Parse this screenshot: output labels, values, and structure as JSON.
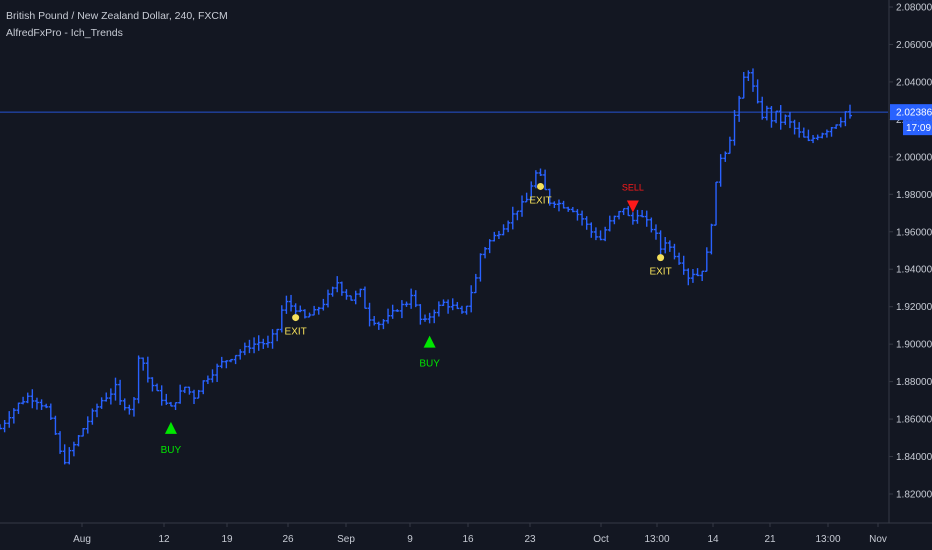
{
  "header": {
    "title": "British Pound / New Zealand Dollar, 240, FXCM",
    "indicator": "AlfredFxPro - Ich_Trends"
  },
  "colors": {
    "background": "#131722",
    "bars": "#2962ff",
    "axis_text": "#c7cbd4",
    "axis_line": "#363a45",
    "buy": "#00e600",
    "sell": "#ff1a1a",
    "exit": "#f5e05a",
    "price_line": "#2962ff"
  },
  "chart_data": {
    "type": "ohlc",
    "symbol": "GBPNZD",
    "timeframe": "240",
    "ylim": [
      1.81,
      2.088
    ],
    "y_ticks": [
      "2.08000",
      "2.06000",
      "2.04000",
      "2.02000",
      "2.00000",
      "1.98000",
      "1.96000",
      "1.94000",
      "1.92000",
      "1.90000",
      "1.88000",
      "1.86000",
      "1.84000",
      "1.82000"
    ],
    "x_ticks": [
      "Aug",
      "12",
      "19",
      "26",
      "Sep",
      "9",
      "16",
      "23",
      "Oct",
      "13:00",
      "14",
      "21",
      "13:00",
      "Nov"
    ],
    "last_price": "2.02386",
    "countdown": "17:09",
    "close_path": [
      [
        0,
        1.855
      ],
      [
        2,
        1.862
      ],
      [
        4,
        1.868
      ],
      [
        6,
        1.872
      ],
      [
        8,
        1.87
      ],
      [
        10,
        1.866
      ],
      [
        12,
        1.852
      ],
      [
        13,
        1.842
      ],
      [
        14,
        1.838
      ],
      [
        16,
        1.846
      ],
      [
        18,
        1.855
      ],
      [
        20,
        1.863
      ],
      [
        22,
        1.87
      ],
      [
        24,
        1.874
      ],
      [
        25,
        1.877
      ],
      [
        26,
        1.869
      ],
      [
        28,
        1.866
      ],
      [
        29,
        1.87
      ],
      [
        30,
        1.894
      ],
      [
        31,
        1.89
      ],
      [
        32,
        1.882
      ],
      [
        34,
        1.874
      ],
      [
        36,
        1.868
      ],
      [
        37,
        1.866
      ],
      [
        38,
        1.87
      ],
      [
        39,
        1.874
      ],
      [
        40,
        1.877
      ],
      [
        42,
        1.872
      ],
      [
        44,
        1.88
      ],
      [
        46,
        1.885
      ],
      [
        48,
        1.89
      ],
      [
        50,
        1.893
      ],
      [
        52,
        1.896
      ],
      [
        54,
        1.899
      ],
      [
        56,
        1.901
      ],
      [
        58,
        1.9
      ],
      [
        60,
        1.908
      ],
      [
        61,
        1.918
      ],
      [
        62,
        1.922
      ],
      [
        64,
        1.919
      ],
      [
        66,
        1.914
      ],
      [
        68,
        1.917
      ],
      [
        70,
        1.922
      ],
      [
        72,
        1.929
      ],
      [
        73,
        1.933
      ],
      [
        74,
        1.929
      ],
      [
        76,
        1.924
      ],
      [
        78,
        1.928
      ],
      [
        79,
        1.92
      ],
      [
        80,
        1.914
      ],
      [
        82,
        1.911
      ],
      [
        84,
        1.914
      ],
      [
        86,
        1.919
      ],
      [
        88,
        1.922
      ],
      [
        89,
        1.927
      ],
      [
        90,
        1.92
      ],
      [
        91,
        1.913
      ],
      [
        92,
        1.912
      ],
      [
        94,
        1.918
      ],
      [
        96,
        1.922
      ],
      [
        98,
        1.92
      ],
      [
        100,
        1.916
      ],
      [
        101,
        1.921
      ],
      [
        103,
        1.935
      ],
      [
        104,
        1.948
      ],
      [
        106,
        1.955
      ],
      [
        108,
        1.96
      ],
      [
        110,
        1.966
      ],
      [
        112,
        1.972
      ],
      [
        114,
        1.977
      ],
      [
        115,
        1.985
      ],
      [
        116,
        1.991
      ],
      [
        117,
        1.989
      ],
      [
        118,
        1.982
      ],
      [
        119,
        1.976
      ],
      [
        120,
        1.976
      ],
      [
        122,
        1.974
      ],
      [
        124,
        1.972
      ],
      [
        126,
        1.967
      ],
      [
        128,
        1.96
      ],
      [
        130,
        1.956
      ],
      [
        131,
        1.961
      ],
      [
        132,
        1.965
      ],
      [
        134,
        1.97
      ],
      [
        135,
        1.973
      ],
      [
        136,
        1.968
      ],
      [
        137,
        1.966
      ],
      [
        138,
        1.97
      ],
      [
        140,
        1.965
      ],
      [
        141,
        1.962
      ],
      [
        142,
        1.958
      ],
      [
        143,
        1.951
      ],
      [
        144,
        1.955
      ],
      [
        146,
        1.948
      ],
      [
        148,
        1.941
      ],
      [
        149,
        1.936
      ],
      [
        150,
        1.938
      ],
      [
        151,
        1.937
      ],
      [
        152,
        1.94
      ],
      [
        153,
        1.948
      ],
      [
        154,
        1.965
      ],
      [
        155,
        1.985
      ],
      [
        156,
        2.0
      ],
      [
        157,
        2.003
      ],
      [
        158,
        2.01
      ],
      [
        159,
        2.022
      ],
      [
        160,
        2.03
      ],
      [
        161,
        2.042
      ],
      [
        162,
        2.046
      ],
      [
        163,
        2.037
      ],
      [
        164,
        2.028
      ],
      [
        165,
        2.022
      ],
      [
        166,
        2.025
      ],
      [
        167,
        2.02
      ],
      [
        168,
        2.023
      ],
      [
        169,
        2.019
      ],
      [
        170,
        2.021
      ],
      [
        172,
        2.015
      ],
      [
        174,
        2.01
      ],
      [
        175,
        2.008
      ],
      [
        176,
        2.01
      ],
      [
        178,
        2.013
      ],
      [
        180,
        2.016
      ],
      [
        182,
        2.02
      ],
      [
        183,
        2.024
      ],
      [
        184,
        2.021
      ]
    ],
    "signals": [
      {
        "type": "buy",
        "label": "BUY",
        "bar": 37,
        "price": 1.866
      },
      {
        "type": "exit",
        "label": "EXIT",
        "bar": 64,
        "price": 1.919
      },
      {
        "type": "buy",
        "label": "BUY",
        "bar": 93,
        "price": 1.912
      },
      {
        "type": "exit",
        "label": "EXIT",
        "bar": 117,
        "price": 1.989
      },
      {
        "type": "sell",
        "label": "SELL",
        "bar": 137,
        "price": 1.966
      },
      {
        "type": "exit",
        "label": "EXIT",
        "bar": 143,
        "price": 1.951
      }
    ]
  }
}
